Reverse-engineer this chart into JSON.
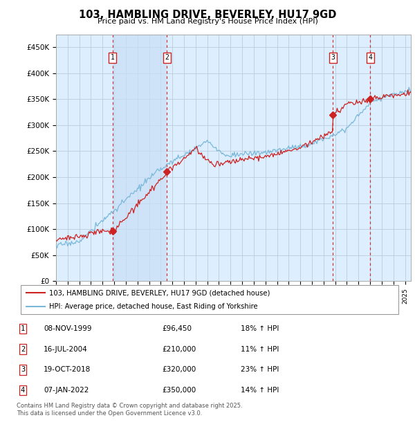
{
  "title": "103, HAMBLING DRIVE, BEVERLEY, HU17 9GD",
  "subtitle": "Price paid vs. HM Land Registry's House Price Index (HPI)",
  "ylabel_ticks": [
    "£0",
    "£50K",
    "£100K",
    "£150K",
    "£200K",
    "£250K",
    "£300K",
    "£350K",
    "£400K",
    "£450K"
  ],
  "ytick_values": [
    0,
    50000,
    100000,
    150000,
    200000,
    250000,
    300000,
    350000,
    400000,
    450000
  ],
  "ylim": [
    0,
    475000
  ],
  "xlim_start": 1995.0,
  "xlim_end": 2025.5,
  "sale_dates": [
    1999.86,
    2004.54,
    2018.8,
    2022.02
  ],
  "sale_prices": [
    96450,
    210000,
    320000,
    350000
  ],
  "sale_labels": [
    "1",
    "2",
    "3",
    "4"
  ],
  "legend_line1": "103, HAMBLING DRIVE, BEVERLEY, HU17 9GD (detached house)",
  "legend_line2": "HPI: Average price, detached house, East Riding of Yorkshire",
  "table_rows": [
    [
      "1",
      "08-NOV-1999",
      "£96,450",
      "18% ↑ HPI"
    ],
    [
      "2",
      "16-JUL-2004",
      "£210,000",
      "11% ↑ HPI"
    ],
    [
      "3",
      "19-OCT-2018",
      "£320,000",
      "23% ↑ HPI"
    ],
    [
      "4",
      "07-JAN-2022",
      "£350,000",
      "14% ↑ HPI"
    ]
  ],
  "footer": "Contains HM Land Registry data © Crown copyright and database right 2025.\nThis data is licensed under the Open Government Licence v3.0.",
  "hpi_color": "#7ab8d9",
  "sale_color": "#cc2222",
  "vline_color": "#cc2222",
  "bg_color": "#ddeeff",
  "shade_color": "#c8dff5",
  "grid_color": "#bbccdd",
  "box_color": "#cc2222"
}
